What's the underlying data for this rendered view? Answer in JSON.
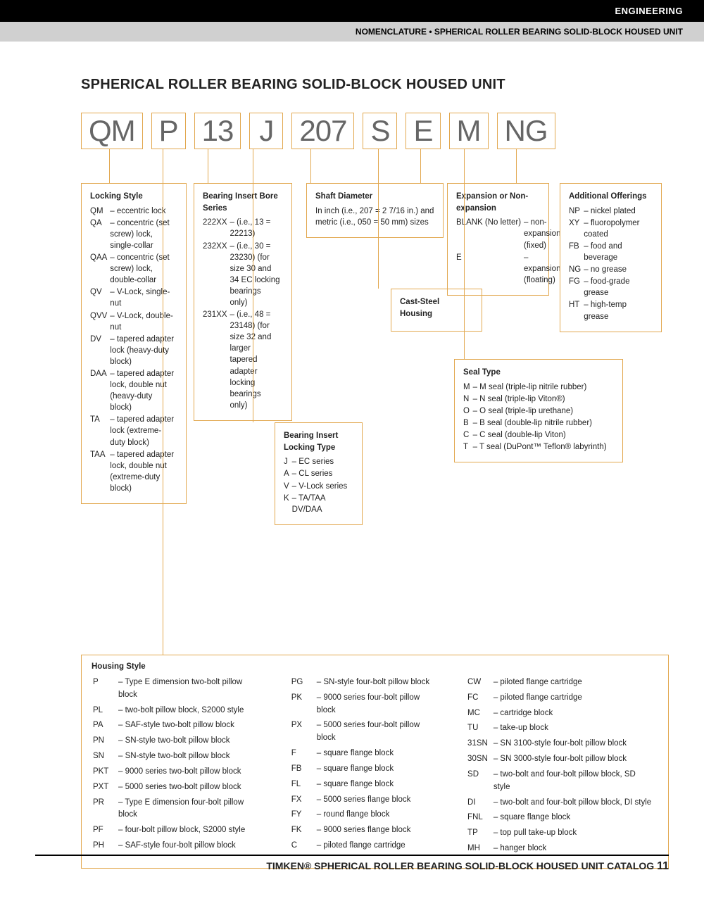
{
  "header": {
    "category": "ENGINEERING",
    "subtitle": "NOMENCLATURE • SPHERICAL ROLLER BEARING SOLID-BLOCK HOUSED UNIT"
  },
  "title": "SPHERICAL ROLLER BEARING SOLID-BLOCK HOUSED UNIT",
  "code": [
    "QM",
    "P",
    "13",
    "J",
    "207",
    "S",
    "E",
    "M",
    "NG"
  ],
  "colors": {
    "accent": "#e2a84f",
    "text": "#222",
    "code_text": "#666"
  },
  "locking_style": {
    "title": "Locking Style",
    "rows": [
      [
        "QM",
        "eccentric lock"
      ],
      [
        "QA",
        "concentric (set screw) lock, single-collar"
      ],
      [
        "QAA",
        "concentric (set screw) lock, double-collar"
      ],
      [
        "QV",
        "V-Lock, single-nut"
      ],
      [
        "QVV",
        "V-Lock, double-nut"
      ],
      [
        "DV",
        "tapered adapter lock (heavy-duty block)"
      ],
      [
        "DAA",
        "tapered adapter lock, double nut (heavy-duty block)"
      ],
      [
        "TA",
        "tapered adapter lock (extreme-duty block)"
      ],
      [
        "TAA",
        "tapered adapter lock, double nut (extreme-duty block)"
      ]
    ]
  },
  "bore_series": {
    "title": "Bearing Insert Bore Series",
    "rows": [
      [
        "222XX",
        "(i.e., 13 = 22213)"
      ],
      [
        "232XX",
        "(i.e., 30 = 23230) (for size 30 and 34 EC locking bearings only)"
      ],
      [
        "231XX",
        "(i.e., 48 = 23148) (for size 32 and larger tapered adapter locking bearings only)"
      ]
    ]
  },
  "locking_type": {
    "title": "Bearing Insert Locking Type",
    "rows": [
      [
        "J",
        "EC series"
      ],
      [
        "A",
        "CL series"
      ],
      [
        "V",
        "V-Lock series"
      ],
      [
        "K",
        "TA/TAA DV/DAA"
      ]
    ]
  },
  "shaft": {
    "title": "Shaft Diameter",
    "text": "In inch (i.e., 207 = 2 7/16 in.) and metric (i.e., 050 = 50 mm) sizes"
  },
  "cast": {
    "title": "Cast-Steel Housing"
  },
  "expansion": {
    "title": "Expansion or Non-expansion",
    "rows": [
      [
        "BLANK (No letter)",
        "non-expansion (fixed)"
      ],
      [
        "E",
        "expansion (floating)"
      ]
    ]
  },
  "seal": {
    "title": "Seal Type",
    "rows": [
      [
        "M",
        "M seal (triple-lip nitrile rubber)"
      ],
      [
        "N",
        "N seal (triple-lip Viton®)"
      ],
      [
        "O",
        "O seal (triple-lip urethane)"
      ],
      [
        "B",
        "B seal (double-lip nitrile rubber)"
      ],
      [
        "C",
        "C seal (double-lip Viton)"
      ],
      [
        "T",
        "T seal (DuPont™ Teflon® labyrinth)"
      ]
    ]
  },
  "additional": {
    "title": "Additional Offerings",
    "rows": [
      [
        "NP",
        "nickel plated"
      ],
      [
        "XY",
        "fluoropolymer coated"
      ],
      [
        "FB",
        "food and beverage"
      ],
      [
        "NG",
        "no grease"
      ],
      [
        "FG",
        "food-grade grease"
      ],
      [
        "HT",
        "high-temp grease"
      ]
    ]
  },
  "housing": {
    "title": "Housing Style",
    "col1": [
      [
        "P",
        "Type E dimension two-bolt pillow block"
      ],
      [
        "PL",
        "two-bolt pillow block, S2000 style"
      ],
      [
        "PA",
        "SAF-style two-bolt pillow block"
      ],
      [
        "PN",
        "SN-style two-bolt pillow block"
      ],
      [
        "SN",
        "SN-style two-bolt pillow block"
      ],
      [
        "PKT",
        "9000 series two-bolt pillow block"
      ],
      [
        "PXT",
        "5000 series two-bolt pillow block"
      ],
      [
        "PR",
        "Type E dimension four-bolt pillow block"
      ],
      [
        "PF",
        "four-bolt pillow block, S2000 style"
      ],
      [
        "PH",
        "SAF-style four-bolt pillow block"
      ]
    ],
    "col2": [
      [
        "PG",
        "SN-style four-bolt pillow block"
      ],
      [
        "PK",
        "9000 series four-bolt pillow block"
      ],
      [
        "PX",
        "5000 series four-bolt pillow block"
      ],
      [
        "F",
        "square flange block"
      ],
      [
        "FB",
        "square flange block"
      ],
      [
        "FL",
        "square flange block"
      ],
      [
        "FX",
        "5000 series flange block"
      ],
      [
        "FY",
        "round flange block"
      ],
      [
        "FK",
        "9000 series flange block"
      ],
      [
        "C",
        "piloted flange cartridge"
      ]
    ],
    "col3": [
      [
        "CW",
        "piloted flange cartridge"
      ],
      [
        "FC",
        "piloted flange cartridge"
      ],
      [
        "MC",
        "cartridge block"
      ],
      [
        "TU",
        "take-up block"
      ],
      [
        "31SN",
        "SN 3100-style four-bolt pillow block"
      ],
      [
        "30SN",
        "SN 3000-style four-bolt pillow block"
      ],
      [
        "SD",
        "two-bolt and four-bolt pillow block, SD style"
      ],
      [
        "DI",
        "two-bolt and four-bolt pillow block, DI style"
      ],
      [
        "FNL",
        "square flange block"
      ],
      [
        "TP",
        "top pull take-up block"
      ],
      [
        "MH",
        "hanger block"
      ]
    ]
  },
  "footer": {
    "text": "TIMKEN® SPHERICAL ROLLER BEARING SOLID-BLOCK HOUSED UNIT CATALOG",
    "page": "11"
  }
}
